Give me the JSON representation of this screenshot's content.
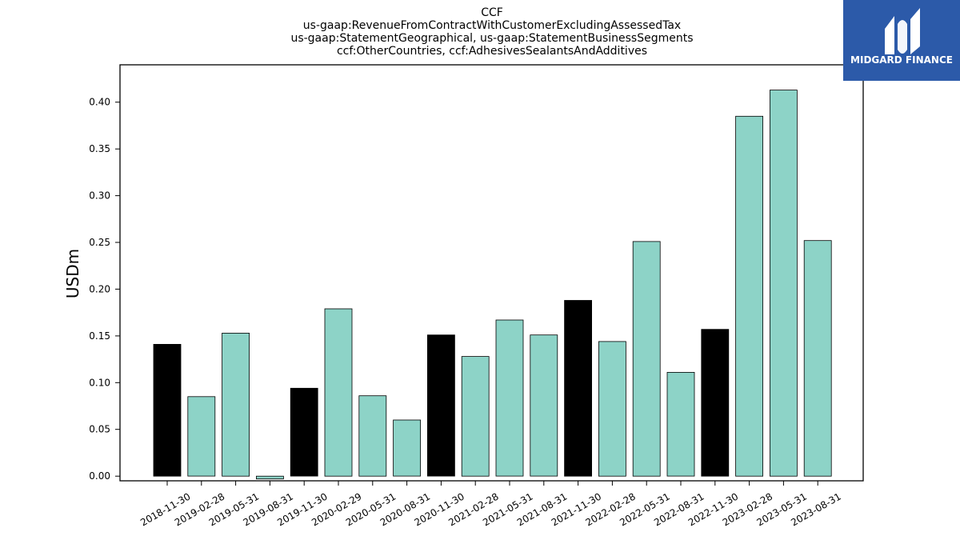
{
  "chart_data": {
    "type": "bar",
    "title_lines": [
      "CCF",
      "us-gaap:RevenueFromContractWithCustomerExcludingAssessedTax",
      "us-gaap:StatementGeographical, us-gaap:StatementBusinessSegments",
      "ccf:OtherCountries, ccf:AdhesivesSealantsAndAdditives"
    ],
    "ylabel": "USDm",
    "ylim": [
      -0.005,
      0.44
    ],
    "yticks": [
      "0.00",
      "0.05",
      "0.10",
      "0.15",
      "0.20",
      "0.25",
      "0.30",
      "0.35",
      "0.40"
    ],
    "categories": [
      "2018-11-30",
      "2019-02-28",
      "2019-05-31",
      "2019-08-31",
      "2019-11-30",
      "2020-02-29",
      "2020-05-31",
      "2020-08-31",
      "2020-11-30",
      "2021-02-28",
      "2021-05-31",
      "2021-08-31",
      "2021-11-30",
      "2022-02-28",
      "2022-05-31",
      "2022-08-31",
      "2022-11-30",
      "2023-02-28",
      "2023-05-31",
      "2023-08-31"
    ],
    "values": [
      0.141,
      0.085,
      0.153,
      -0.003,
      0.094,
      0.179,
      0.086,
      0.06,
      0.151,
      0.128,
      0.167,
      0.151,
      0.188,
      0.144,
      0.251,
      0.111,
      0.157,
      0.385,
      0.413,
      0.252
    ],
    "highlight": [
      true,
      false,
      false,
      false,
      true,
      false,
      false,
      false,
      true,
      false,
      false,
      false,
      true,
      false,
      false,
      false,
      true,
      false,
      false,
      false
    ],
    "colors": {
      "default": "#8dd3c7",
      "highlight": "#000000",
      "edge": "#000000"
    },
    "grid": false
  },
  "logo": {
    "text": "MIDGARD FINANCE",
    "icon": "midgard-logo-icon",
    "color": "#2c5aa9"
  }
}
